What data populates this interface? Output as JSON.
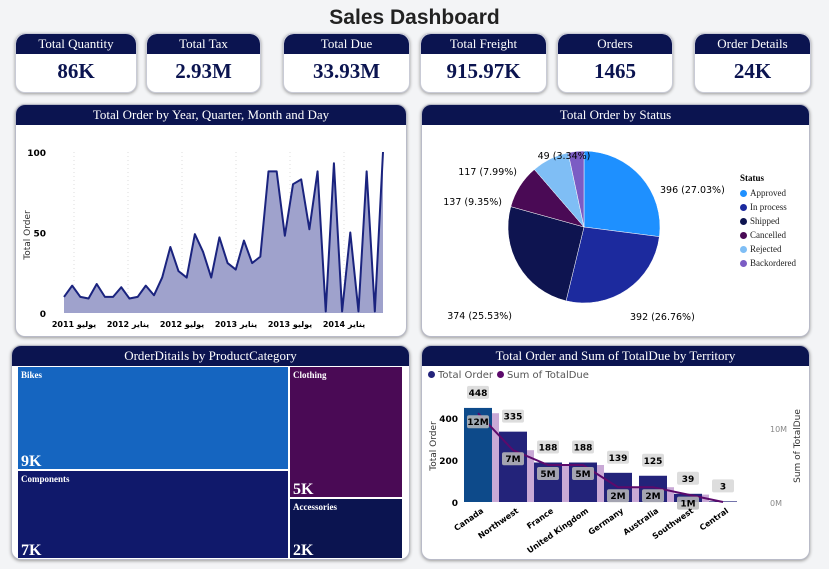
{
  "title": "Sales Dashboard",
  "kpis": [
    {
      "label": "Total Quantity",
      "value": "86K"
    },
    {
      "label": "Total Tax",
      "value": "2.93M"
    },
    {
      "label": "Total Due",
      "value": "33.93M"
    },
    {
      "label": "Total Freight",
      "value": "915.97K"
    },
    {
      "label": "Orders",
      "value": "1465"
    },
    {
      "label": "Order Details",
      "value": "24K"
    }
  ],
  "colors": {
    "header": "#0b1450",
    "line": "#1a237e",
    "area": "#9fa2cc"
  },
  "chart_data": [
    {
      "type": "area",
      "title": "Total Order by Year, Quarter, Month and Day",
      "ylabel": "Total Order",
      "ylim": [
        0,
        100
      ],
      "yticks": [
        "0",
        "50",
        "100"
      ],
      "xticks": [
        "يوليو 2011",
        "يناير 2012",
        "يوليو 2012",
        "يناير 2013",
        "يوليو 2013",
        "يناير 2014"
      ],
      "values": [
        10,
        17,
        10,
        9,
        18,
        10,
        10,
        16,
        9,
        10,
        17,
        11,
        22,
        41,
        26,
        22,
        49,
        38,
        22,
        47,
        31,
        27,
        45,
        31,
        35,
        88,
        88,
        48,
        80,
        83,
        52,
        88,
        1,
        93,
        1,
        50,
        1,
        88,
        1,
        100
      ]
    },
    {
      "type": "pie",
      "title": "Total Order by Status",
      "legend_title": "Status",
      "legend": "right",
      "slices": [
        {
          "name": "Approved",
          "value": 396,
          "label": "396 (27.03%)",
          "color": "#1e90ff"
        },
        {
          "name": "In process",
          "value": 392,
          "label": "392 (26.76%)",
          "color": "#1c2a9e"
        },
        {
          "name": "Shipped",
          "value": 374,
          "label": "374 (25.53%)",
          "color": "#0e1450"
        },
        {
          "name": "Cancelled",
          "value": 137,
          "label": "137 (9.35%)",
          "color": "#4a0a55"
        },
        {
          "name": "Rejected",
          "value": 117,
          "label": "117 (7.99%)",
          "color": "#7fbef5"
        },
        {
          "name": "Backordered",
          "value": 49,
          "label": "49 (3.34%)",
          "color": "#7b5cc4"
        }
      ]
    },
    {
      "type": "treemap",
      "title": "OrderDitails by ProductCategory",
      "items": [
        {
          "name": "Bikes",
          "value": "9K",
          "color": "#1565c0"
        },
        {
          "name": "Components",
          "value": "7K",
          "color": "#10196b"
        },
        {
          "name": "Clothing",
          "value": "5K",
          "color": "#4a0a55"
        },
        {
          "name": "Accessories",
          "value": "2K",
          "color": "#0b1450"
        }
      ]
    },
    {
      "type": "bar+line",
      "title": "Total Order and Sum of TotalDue by Territory",
      "ylabel": "Total Order",
      "y2label": "Sum of TotalDue",
      "ylim": [
        0,
        450
      ],
      "yticks": [
        "0",
        "200",
        "400"
      ],
      "y2ticks": [
        "0M",
        "10M"
      ],
      "categories": [
        "Canada",
        "Northwest",
        "France",
        "United Kingdom",
        "Germany",
        "Australia",
        "Southwest",
        "Central"
      ],
      "series": [
        {
          "name": "Total Order",
          "color": "#23237a",
          "values": [
            448,
            335,
            188,
            188,
            139,
            125,
            39,
            3
          ],
          "labels": [
            "448",
            "335",
            "188",
            "188",
            "139",
            "125",
            "39",
            "3"
          ]
        },
        {
          "name": "Sum of TotalDue",
          "color": "#5c0a6b",
          "values": [
            12,
            7,
            5,
            5,
            2,
            2,
            1,
            0
          ],
          "labels": [
            "12M",
            "7M",
            "5M",
            "5M",
            "2M",
            "2M",
            "1M",
            ""
          ]
        }
      ]
    }
  ]
}
